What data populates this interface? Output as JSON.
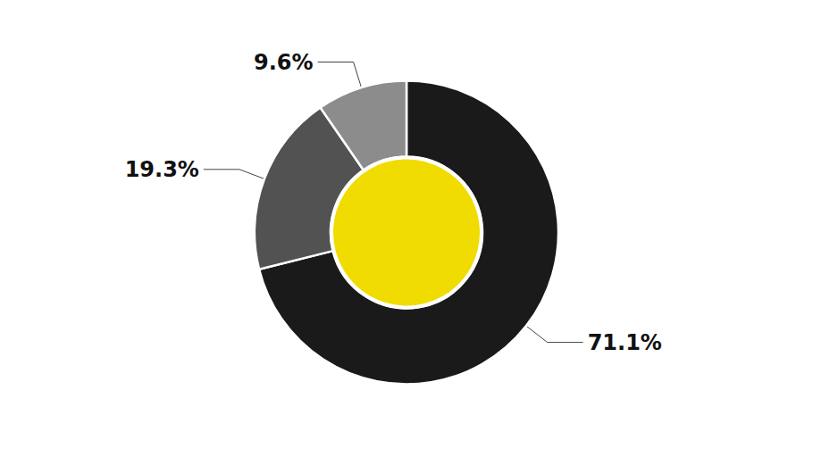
{
  "chart_data": {
    "type": "pie",
    "values": [
      71.1,
      19.3,
      9.6
    ],
    "value_labels": [
      "71.1%",
      "19.3%",
      "9.6%"
    ],
    "colors": [
      "#1a1a1a",
      "#525252",
      "#8c8c8c"
    ],
    "data_labels": true
  }
}
